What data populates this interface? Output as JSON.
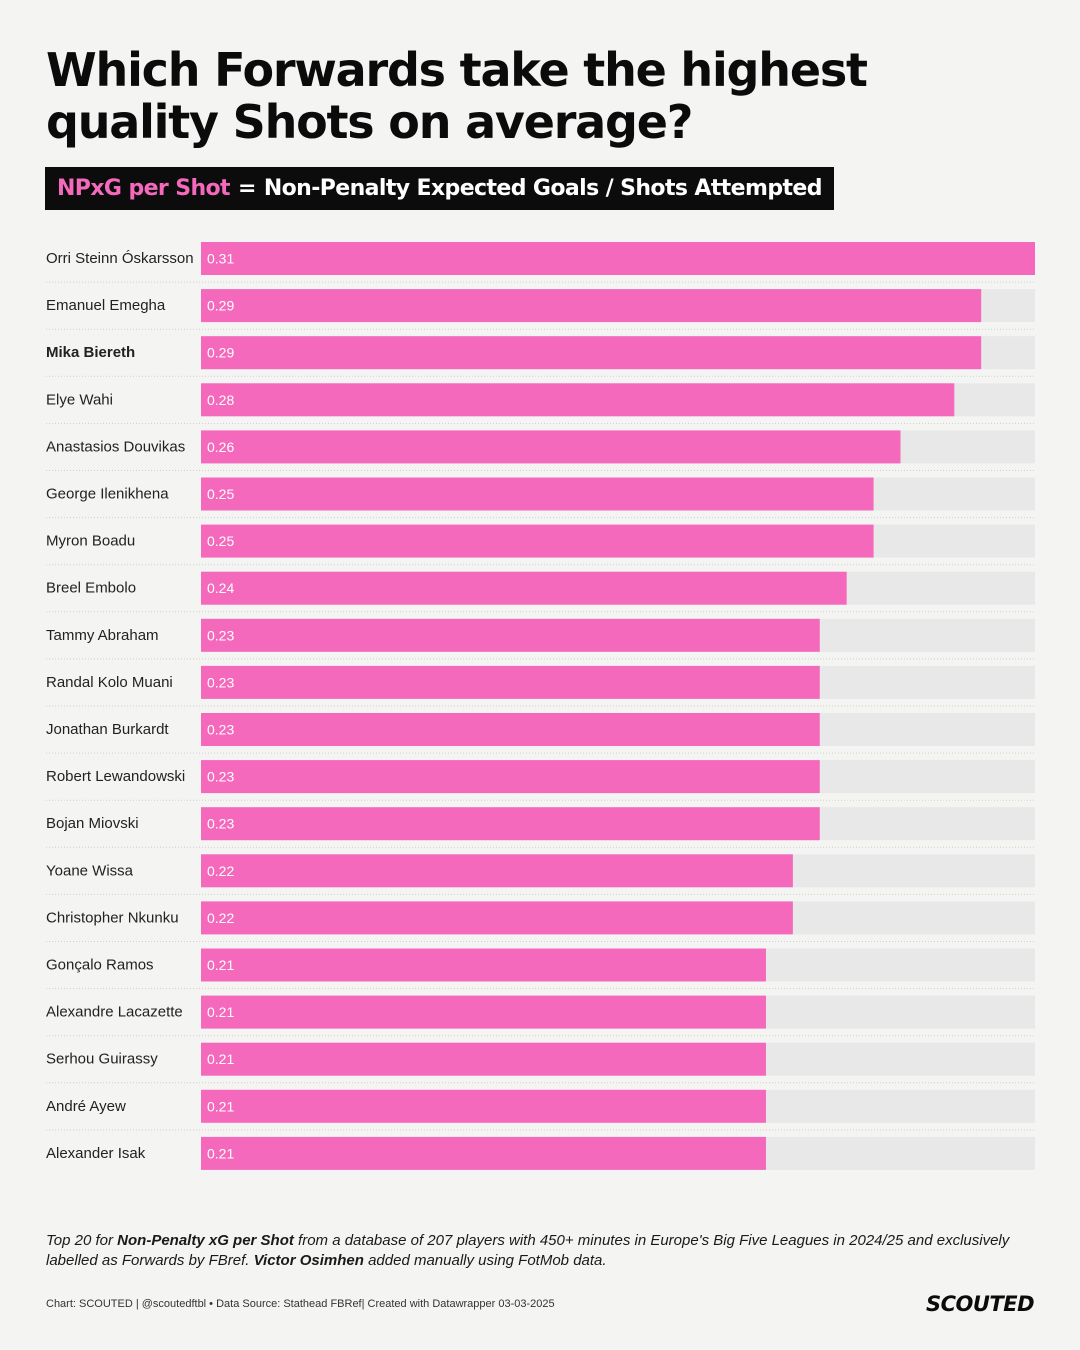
{
  "header": {
    "title": "Which Forwards take the highest quality Shots on average?",
    "subtitle_metric": "NPxG per Shot",
    "subtitle_equals": "=",
    "subtitle_definition": "Non-Penalty Expected Goals / Shots Attempted"
  },
  "colors": {
    "bar": "#f569bd",
    "track": "#e8e8e8",
    "background": "#f4f4f3",
    "accent": "#f569bd"
  },
  "chart_data": {
    "type": "bar",
    "orientation": "horizontal",
    "title": "Which Forwards take the highest quality Shots on average?",
    "xlabel": "NPxG per Shot",
    "ylabel": "",
    "xlim": [
      0,
      0.31
    ],
    "highlighted": "Mika Biereth",
    "categories": [
      "Orri Steinn Óskarsson",
      "Emanuel Emegha",
      "Mika Biereth",
      "Elye Wahi",
      "Anastasios Douvikas",
      "George Ilenikhena",
      "Myron Boadu",
      "Breel Embolo",
      "Tammy Abraham",
      "Randal Kolo Muani",
      "Jonathan Burkardt",
      "Robert Lewandowski",
      "Bojan Miovski",
      "Yoane Wissa",
      "Christopher Nkunku",
      "Gonçalo Ramos",
      "Alexandre Lacazette",
      "Serhou Guirassy",
      "André Ayew",
      "Alexander Isak"
    ],
    "values": [
      0.31,
      0.29,
      0.29,
      0.28,
      0.26,
      0.25,
      0.25,
      0.24,
      0.23,
      0.23,
      0.23,
      0.23,
      0.23,
      0.22,
      0.22,
      0.21,
      0.21,
      0.21,
      0.21,
      0.21
    ],
    "value_labels": [
      "0.31",
      "0.29",
      "0.29",
      "0.28",
      "0.26",
      "0.25",
      "0.25",
      "0.24",
      "0.23",
      "0.23",
      "0.23",
      "0.23",
      "0.23",
      "0.22",
      "0.22",
      "0.21",
      "0.21",
      "0.21",
      "0.21",
      "0.21"
    ]
  },
  "footnote": {
    "p1": "Top 20 for ",
    "b1": "Non-Penalty xG per Shot",
    "p2": " from a database of 207 players with 450+ minutes in Europe's Big Five Leagues in 2024/25 and exclusively labelled as Forwards by FBref. ",
    "b2": "Victor Osimhen",
    "p3": " added manually using FotMob data."
  },
  "credits": "Chart: SCOUTED | @scoutedftbl • Data Source: Stathead FBRef| Created with Datawrapper 03-03-2025",
  "logo": "SCOUTED"
}
